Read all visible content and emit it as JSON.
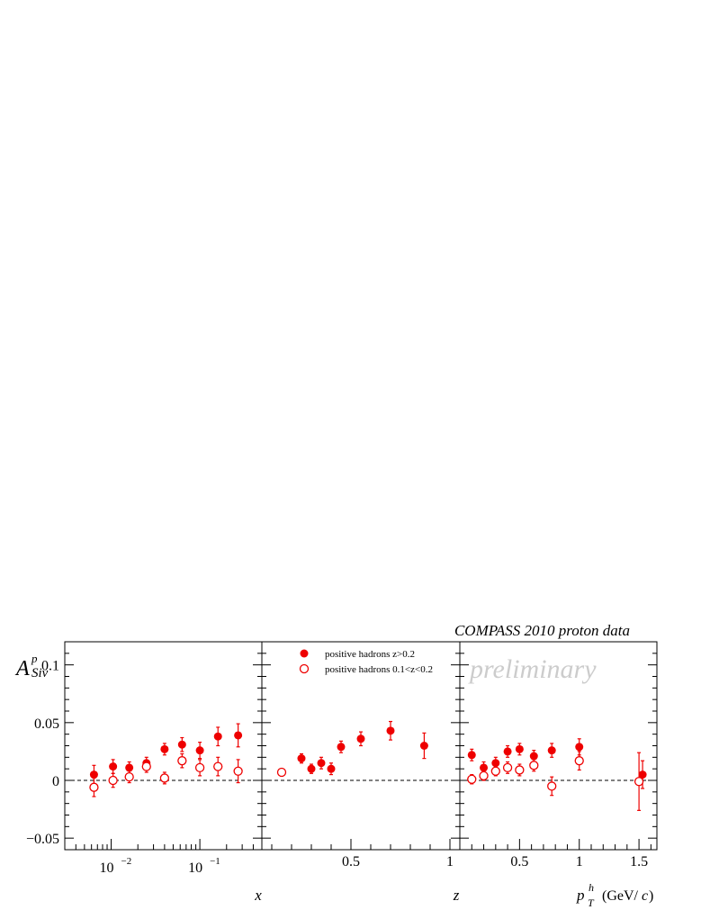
{
  "header": {
    "title": "COMPASS 2010 proton data",
    "watermark": "preliminary"
  },
  "ylabel": {
    "main": "A",
    "sup": "p",
    "sub": "Siv"
  },
  "legend": {
    "entries": [
      {
        "marker": "filled-circle",
        "label": "positive hadrons z>0.2"
      },
      {
        "marker": "open-circle",
        "label": "positive hadrons 0.1<z<0.2"
      }
    ]
  },
  "colors": {
    "series": "#ee0000",
    "axis": "#000000",
    "watermark": "#cccccc"
  },
  "chart_data": [
    {
      "type": "scatter",
      "panel": "x",
      "xlabel": "x",
      "xscale": "log",
      "xlim": [
        0.003,
        0.5
      ],
      "ylim": [
        -0.06,
        0.12
      ],
      "xtick_labels": [
        "10^-2",
        "10^-1"
      ],
      "ytick_labels": [
        "−0.05",
        "0",
        "0.05",
        "0.1"
      ],
      "series": [
        {
          "name": "positive hadrons z>0.2",
          "marker": "filled",
          "points": [
            {
              "x": 0.0064,
              "y": 0.005,
              "err": 0.008
            },
            {
              "x": 0.0105,
              "y": 0.012,
              "err": 0.006
            },
            {
              "x": 0.016,
              "y": 0.011,
              "err": 0.005
            },
            {
              "x": 0.025,
              "y": 0.015,
              "err": 0.005
            },
            {
              "x": 0.04,
              "y": 0.027,
              "err": 0.005
            },
            {
              "x": 0.063,
              "y": 0.031,
              "err": 0.006
            },
            {
              "x": 0.1,
              "y": 0.026,
              "err": 0.007
            },
            {
              "x": 0.16,
              "y": 0.038,
              "err": 0.008
            },
            {
              "x": 0.27,
              "y": 0.039,
              "err": 0.01
            }
          ]
        },
        {
          "name": "positive hadrons 0.1<z<0.2",
          "marker": "open",
          "points": [
            {
              "x": 0.0064,
              "y": -0.006,
              "err": 0.008
            },
            {
              "x": 0.0105,
              "y": 0.0,
              "err": 0.006
            },
            {
              "x": 0.016,
              "y": 0.003,
              "err": 0.005
            },
            {
              "x": 0.025,
              "y": 0.012,
              "err": 0.005
            },
            {
              "x": 0.04,
              "y": 0.002,
              "err": 0.005
            },
            {
              "x": 0.063,
              "y": 0.017,
              "err": 0.006
            },
            {
              "x": 0.1,
              "y": 0.011,
              "err": 0.007
            },
            {
              "x": 0.16,
              "y": 0.012,
              "err": 0.008
            },
            {
              "x": 0.27,
              "y": 0.008,
              "err": 0.01
            }
          ]
        }
      ]
    },
    {
      "type": "scatter",
      "panel": "z",
      "xlabel": "z",
      "xscale": "linear",
      "xlim": [
        0.05,
        1.05
      ],
      "ylim": [
        -0.06,
        0.12
      ],
      "xticks": [
        0.5,
        1
      ],
      "xtick_labels": [
        "0.5",
        "1"
      ],
      "series": [
        {
          "name": "positive hadrons z>0.2",
          "marker": "filled",
          "points": [
            {
              "x": 0.25,
              "y": 0.019,
              "err": 0.004
            },
            {
              "x": 0.3,
              "y": 0.01,
              "err": 0.004
            },
            {
              "x": 0.35,
              "y": 0.015,
              "err": 0.005
            },
            {
              "x": 0.4,
              "y": 0.01,
              "err": 0.005
            },
            {
              "x": 0.45,
              "y": 0.029,
              "err": 0.005
            },
            {
              "x": 0.55,
              "y": 0.036,
              "err": 0.006
            },
            {
              "x": 0.7,
              "y": 0.043,
              "err": 0.008
            },
            {
              "x": 0.87,
              "y": 0.03,
              "err": 0.011
            }
          ]
        },
        {
          "name": "positive hadrons 0.1<z<0.2",
          "marker": "open",
          "points": [
            {
              "x": 0.15,
              "y": 0.007,
              "err": 0.002
            }
          ]
        }
      ]
    },
    {
      "type": "scatter",
      "panel": "pT",
      "xlabel": "p_T^h (GeV/c)",
      "xscale": "linear",
      "xlim": [
        0.0,
        1.65
      ],
      "ylim": [
        -0.06,
        0.12
      ],
      "xticks": [
        0.5,
        1,
        1.5
      ],
      "xtick_labels": [
        "0.5",
        "1",
        "1.5"
      ],
      "series": [
        {
          "name": "positive hadrons z>0.2",
          "marker": "filled",
          "points": [
            {
              "x": 0.1,
              "y": 0.022,
              "err": 0.005
            },
            {
              "x": 0.2,
              "y": 0.011,
              "err": 0.005
            },
            {
              "x": 0.3,
              "y": 0.015,
              "err": 0.005
            },
            {
              "x": 0.4,
              "y": 0.025,
              "err": 0.005
            },
            {
              "x": 0.5,
              "y": 0.027,
              "err": 0.005
            },
            {
              "x": 0.62,
              "y": 0.021,
              "err": 0.005
            },
            {
              "x": 0.77,
              "y": 0.026,
              "err": 0.006
            },
            {
              "x": 1.0,
              "y": 0.029,
              "err": 0.007
            },
            {
              "x": 1.53,
              "y": 0.005,
              "err": 0.012
            }
          ]
        },
        {
          "name": "positive hadrons 0.1<z<0.2",
          "marker": "open",
          "points": [
            {
              "x": 0.1,
              "y": 0.001,
              "err": 0.004
            },
            {
              "x": 0.2,
              "y": 0.004,
              "err": 0.004
            },
            {
              "x": 0.3,
              "y": 0.008,
              "err": 0.004
            },
            {
              "x": 0.4,
              "y": 0.011,
              "err": 0.005
            },
            {
              "x": 0.5,
              "y": 0.009,
              "err": 0.005
            },
            {
              "x": 0.62,
              "y": 0.013,
              "err": 0.005
            },
            {
              "x": 0.77,
              "y": -0.005,
              "err": 0.008
            },
            {
              "x": 1.0,
              "y": 0.017,
              "err": 0.008
            },
            {
              "x": 1.5,
              "y": -0.001,
              "err": 0.025
            }
          ]
        }
      ]
    }
  ]
}
